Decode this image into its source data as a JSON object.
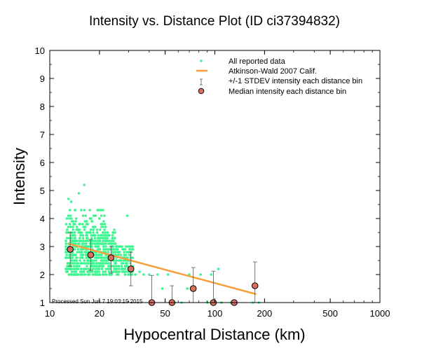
{
  "chart_data": {
    "type": "scatter",
    "title": "Intensity vs. Distance Plot (ID ci37394832)",
    "xlabel": "Hypocentral Distance (km)",
    "ylabel": "Intensity",
    "xscale": "log",
    "xlim": [
      10,
      1000
    ],
    "ylim": [
      1,
      10
    ],
    "xticks": [
      10,
      20,
      50,
      100,
      200,
      500,
      1000
    ],
    "xtick_labels": [
      "10",
      "20",
      "50",
      "100",
      "200",
      "500",
      "1000"
    ],
    "yticks": [
      1,
      2,
      3,
      4,
      5,
      6,
      7,
      8,
      9,
      10
    ],
    "ytick_labels": [
      "1",
      "2",
      "3",
      "4",
      "5",
      "6",
      "7",
      "8",
      "9",
      "10"
    ],
    "annotation": "Processed Sun Jun  7 19:03:15 2015",
    "legend": {
      "position": "top-right",
      "entries": [
        "All reported data",
        "Atkinson-Wald 2007 Calif.",
        "+/-1 STDEV intensity each distance bin",
        "Median intensity each distance bin"
      ]
    },
    "colors": {
      "reported_data": "#3ef58f",
      "fit_line": "#f5a03c",
      "median_fill": "#d9705f",
      "stdev": "#555555"
    },
    "atkinson_wald_fit": {
      "x": [
        13,
        178
      ],
      "y": [
        3.1,
        1.3
      ]
    },
    "median_bins": [
      {
        "distance": 13.3,
        "median": 2.9,
        "low": 2.3,
        "high": 3.5
      },
      {
        "distance": 17.7,
        "median": 2.7,
        "low": 2.15,
        "high": 3.25
      },
      {
        "distance": 23.5,
        "median": 2.6,
        "low": 2.05,
        "high": 3.0
      },
      {
        "distance": 31.0,
        "median": 2.2,
        "low": 1.6,
        "high": 2.8
      },
      {
        "distance": 41.5,
        "median": 1.0,
        "low": 1.0,
        "high": 1.97
      },
      {
        "distance": 55.0,
        "median": 1.0,
        "low": 1.0,
        "high": 1.6
      },
      {
        "distance": 74.0,
        "median": 1.5,
        "low": 1.0,
        "high": 2.25
      },
      {
        "distance": 98.0,
        "median": 1.0,
        "low": 1.0,
        "high": 2.12
      },
      {
        "distance": 131.0,
        "median": 1.0,
        "low": 1.0,
        "high": 1.0
      },
      {
        "distance": 175.0,
        "median": 1.6,
        "low": 1.0,
        "high": 2.45
      }
    ],
    "scatter_clusters": [
      {
        "x_range": [
          12.5,
          32
        ],
        "y_levels": [
          2.0,
          2.1,
          2.2,
          2.3,
          2.4,
          2.5,
          2.6,
          2.7,
          2.8,
          2.9,
          3.0,
          3.1,
          3.2,
          3.3,
          3.4,
          3.5,
          3.6,
          3.7,
          3.8,
          3.9,
          4.0,
          4.1,
          4.3
        ]
      }
    ],
    "scatter_extra_points": [
      {
        "x": 13.0,
        "y": 4.7
      },
      {
        "x": 13.5,
        "y": 4.6
      },
      {
        "x": 15.0,
        "y": 4.9
      },
      {
        "x": 16.2,
        "y": 5.2
      },
      {
        "x": 14.2,
        "y": 4.3
      },
      {
        "x": 17.5,
        "y": 4.3
      },
      {
        "x": 29.5,
        "y": 4.1
      },
      {
        "x": 33.0,
        "y": 2.0
      },
      {
        "x": 35.0,
        "y": 2.1
      },
      {
        "x": 37.0,
        "y": 2.0
      },
      {
        "x": 40.0,
        "y": 2.0
      },
      {
        "x": 45.0,
        "y": 2.0
      },
      {
        "x": 48.0,
        "y": 1.5
      },
      {
        "x": 52.0,
        "y": 2.0
      },
      {
        "x": 57.0,
        "y": 1.0
      },
      {
        "x": 63.0,
        "y": 1.0
      },
      {
        "x": 68.0,
        "y": 1.5
      },
      {
        "x": 70.0,
        "y": 2.0
      },
      {
        "x": 82.0,
        "y": 2.0
      },
      {
        "x": 90.0,
        "y": 1.0
      },
      {
        "x": 95.0,
        "y": 2.0
      },
      {
        "x": 105.0,
        "y": 2.2
      },
      {
        "x": 110.0,
        "y": 1.0
      },
      {
        "x": 125.0,
        "y": 1.0
      },
      {
        "x": 170.0,
        "y": 1.0
      },
      {
        "x": 185.0,
        "y": 1.0
      }
    ]
  }
}
